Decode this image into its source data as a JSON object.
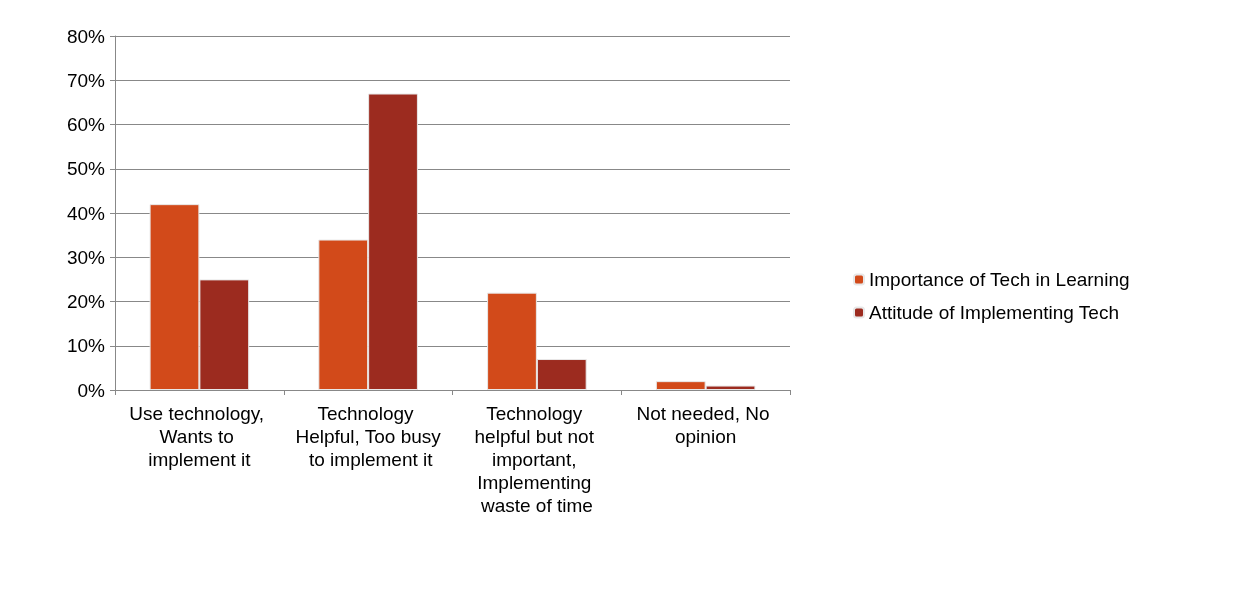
{
  "chart_data": {
    "type": "bar",
    "categories": [
      "Use technology, Wants to implement it",
      "Technology Helpful, Too busy to implement it",
      "Technology helpful but not important, Implementing waste of time",
      "Not needed, No opinion"
    ],
    "series": [
      {
        "name": "Importance of Tech in Learning",
        "color": "#d24a1a",
        "values": [
          42,
          34,
          22,
          2
        ]
      },
      {
        "name": "Attitude of Implementing Tech",
        "color": "#9c2b1f",
        "values": [
          25,
          67,
          7,
          1
        ]
      }
    ],
    "ylim": [
      0,
      80
    ],
    "yticks": [
      {
        "value": 0,
        "label": "0%"
      },
      {
        "value": 10,
        "label": "10%"
      },
      {
        "value": 20,
        "label": "20%"
      },
      {
        "value": 30,
        "label": "30%"
      },
      {
        "value": 40,
        "label": "40%"
      },
      {
        "value": 50,
        "label": "50%"
      },
      {
        "value": 60,
        "label": "60%"
      },
      {
        "value": 70,
        "label": "70%"
      },
      {
        "value": 80,
        "label": "80%"
      }
    ],
    "grid": "y",
    "legend": "right"
  }
}
